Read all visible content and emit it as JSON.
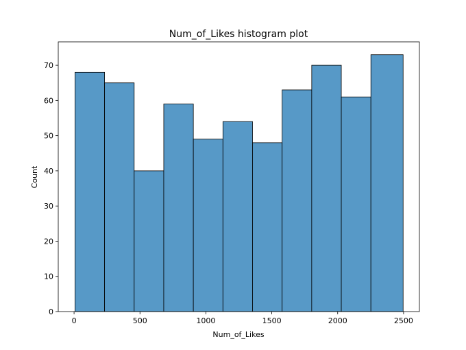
{
  "chart_data": {
    "type": "bar",
    "title": "Num_of_Likes histogram plot",
    "xlabel": "Num_of_Likes",
    "ylabel": "Count",
    "bin_edges": [
      7,
      231.5,
      456,
      680.5,
      905,
      1129.5,
      1354,
      1578.5,
      1803,
      2027.5,
      2252,
      2496.5
    ],
    "counts": [
      68,
      65,
      40,
      59,
      49,
      54,
      48,
      63,
      70,
      61,
      73
    ],
    "xlim": [
      -120,
      2620
    ],
    "ylim": [
      0,
      76.65
    ],
    "xticks": [
      0,
      500,
      1000,
      1500,
      2000,
      2500
    ],
    "yticks": [
      0,
      10,
      20,
      30,
      40,
      50,
      60,
      70
    ],
    "bar_color": "#5799c7",
    "edge_color": "#000000",
    "grid": false
  }
}
